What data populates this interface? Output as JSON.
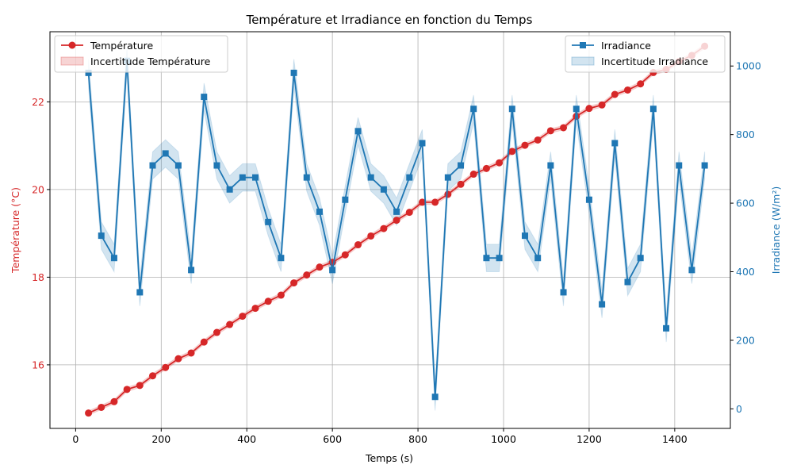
{
  "chart_data": {
    "type": "line",
    "title": "Température et Irradiance en fonction du Temps",
    "xlabel": "Temps (s)",
    "xlim": [
      -60,
      1530
    ],
    "xticks": [
      0,
      200,
      400,
      600,
      800,
      1000,
      1200,
      1400
    ],
    "grid": true,
    "x": [
      30,
      60,
      90,
      120,
      150,
      180,
      210,
      240,
      270,
      300,
      330,
      360,
      390,
      420,
      450,
      480,
      510,
      540,
      570,
      600,
      630,
      660,
      690,
      720,
      750,
      780,
      810,
      840,
      870,
      900,
      930,
      960,
      990,
      1020,
      1050,
      1080,
      1110,
      1140,
      1170,
      1200,
      1230,
      1260,
      1290,
      1320,
      1350,
      1380,
      1410,
      1440,
      1470
    ],
    "left_axis": {
      "label": "Température (°C)",
      "color": "#d62728",
      "ylim": [
        14.55,
        23.6
      ],
      "ticks": [
        16,
        18,
        20,
        22
      ]
    },
    "right_axis": {
      "label": "Irradiance (W/m²)",
      "color": "#1f77b4",
      "ylim": [
        -57,
        1100
      ],
      "ticks": [
        0,
        200,
        400,
        600,
        800,
        1000
      ]
    },
    "series": [
      {
        "name": "Température",
        "axis": "left",
        "marker": "circle",
        "color": "#d62728",
        "values": [
          14.9,
          15.03,
          15.16,
          15.44,
          15.53,
          15.75,
          15.94,
          16.14,
          16.27,
          16.52,
          16.74,
          16.92,
          17.11,
          17.29,
          17.45,
          17.59,
          17.87,
          18.05,
          18.23,
          18.34,
          18.51,
          18.74,
          18.94,
          19.11,
          19.3,
          19.48,
          19.71,
          19.71,
          19.89,
          20.12,
          20.35,
          20.48,
          20.61,
          20.87,
          21.01,
          21.13,
          21.34,
          21.41,
          21.67,
          21.85,
          21.93,
          22.17,
          22.27,
          22.41,
          22.67,
          22.74,
          22.92,
          23.06,
          23.27
        ],
        "uncertainty": 0.05
      },
      {
        "name": "Irradiance",
        "axis": "right",
        "marker": "square",
        "color": "#1f77b4",
        "values": [
          980,
          505,
          440,
          1015,
          340,
          710,
          745,
          710,
          405,
          910,
          710,
          640,
          675,
          675,
          545,
          440,
          980,
          675,
          575,
          405,
          610,
          810,
          675,
          640,
          575,
          675,
          775,
          35,
          675,
          710,
          875,
          440,
          440,
          875,
          505,
          440,
          710,
          340,
          875,
          610,
          305,
          775,
          370,
          440,
          875,
          235,
          710,
          405,
          710
        ],
        "uncertainty": 40
      }
    ],
    "legend": [
      {
        "label": "Température",
        "placement": "top-left",
        "kind": "line"
      },
      {
        "label": "Incertitude Température",
        "placement": "top-left",
        "kind": "band"
      },
      {
        "label": "Irradiance",
        "placement": "top-right",
        "kind": "line"
      },
      {
        "label": "Incertitude Irradiance",
        "placement": "top-right",
        "kind": "band"
      }
    ]
  }
}
